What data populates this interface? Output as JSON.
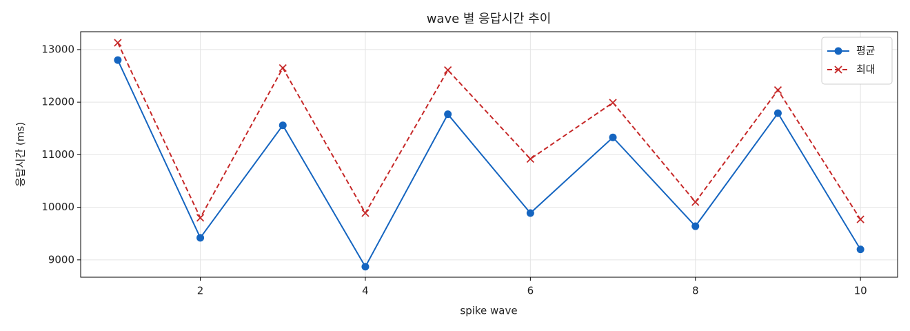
{
  "chart_data": {
    "type": "line",
    "title": "wave 별 응답시간 추이",
    "x_label": "spike wave",
    "y_label": "응답시간 (ms)",
    "x": [
      1,
      2,
      3,
      4,
      5,
      6,
      7,
      8,
      9,
      10
    ],
    "series": [
      {
        "name": "평균",
        "color": "#1565c0",
        "marker": "circle",
        "dash": "solid",
        "values": [
          12800,
          9420,
          11560,
          8870,
          11770,
          9890,
          11330,
          9640,
          11790,
          9200
        ]
      },
      {
        "name": "최대",
        "color": "#c62828",
        "marker": "x",
        "dash": "dashed",
        "values": [
          13130,
          9800,
          12650,
          9890,
          12610,
          10920,
          11990,
          10100,
          12230,
          9770
        ]
      }
    ],
    "xlim": [
      0.55,
      10.45
    ],
    "xticks": [
      2,
      4,
      6,
      8,
      10
    ],
    "ylim": [
      8670,
      13340
    ],
    "yticks": [
      9000,
      10000,
      11000,
      12000,
      13000
    ],
    "grid": true,
    "legend": "upper right"
  }
}
